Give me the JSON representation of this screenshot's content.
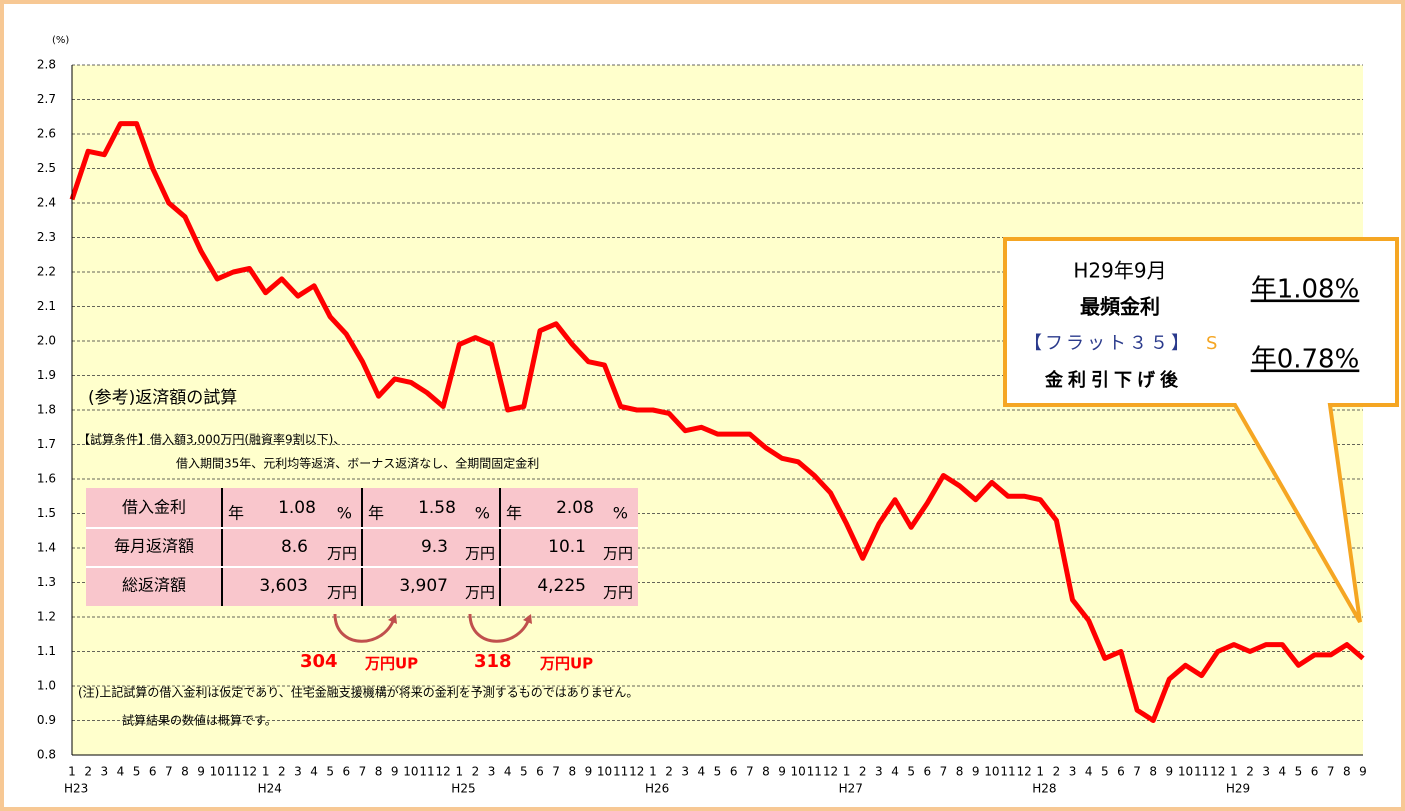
{
  "chart_data": {
    "type": "line",
    "y_unit": "(%)",
    "categories": [
      "1",
      "2",
      "3",
      "4",
      "5",
      "6",
      "7",
      "8",
      "9",
      "10",
      "11",
      "12",
      "1",
      "2",
      "3",
      "4",
      "5",
      "6",
      "7",
      "8",
      "9",
      "10",
      "11",
      "12",
      "1",
      "2",
      "3",
      "4",
      "5",
      "6",
      "7",
      "8",
      "9",
      "10",
      "11",
      "12",
      "1",
      "2",
      "3",
      "4",
      "5",
      "6",
      "7",
      "8",
      "9",
      "10",
      "11",
      "12",
      "1",
      "2",
      "3",
      "4",
      "5",
      "6",
      "7",
      "8",
      "9",
      "10",
      "11",
      "12",
      "1",
      "2",
      "3",
      "4",
      "5",
      "6",
      "7",
      "8",
      "9",
      "10",
      "11",
      "12",
      "1",
      "2",
      "3",
      "4",
      "5",
      "6",
      "7",
      "8",
      "9"
    ],
    "category_years": [
      "H23",
      null,
      null,
      null,
      null,
      null,
      null,
      null,
      null,
      null,
      null,
      null,
      "H24",
      null,
      null,
      null,
      null,
      null,
      null,
      null,
      null,
      null,
      null,
      null,
      "H25",
      null,
      null,
      null,
      null,
      null,
      null,
      null,
      null,
      null,
      null,
      null,
      "H26",
      null,
      null,
      null,
      null,
      null,
      null,
      null,
      null,
      null,
      null,
      null,
      "H27",
      null,
      null,
      null,
      null,
      null,
      null,
      null,
      null,
      null,
      null,
      null,
      "H28",
      null,
      null,
      null,
      null,
      null,
      null,
      null,
      null,
      null,
      null,
      null,
      "H29",
      null,
      null,
      null,
      null,
      null,
      null,
      null,
      null
    ],
    "values": [
      2.41,
      2.55,
      2.54,
      2.63,
      2.63,
      2.5,
      2.4,
      2.36,
      2.26,
      2.18,
      2.2,
      2.21,
      2.14,
      2.18,
      2.13,
      2.16,
      2.07,
      2.02,
      1.94,
      1.84,
      1.89,
      1.88,
      1.85,
      1.81,
      1.99,
      2.01,
      1.99,
      1.8,
      1.81,
      2.03,
      2.05,
      1.99,
      1.94,
      1.93,
      1.81,
      1.8,
      1.8,
      1.79,
      1.74,
      1.75,
      1.73,
      1.73,
      1.73,
      1.69,
      1.66,
      1.65,
      1.61,
      1.56,
      1.47,
      1.37,
      1.47,
      1.54,
      1.46,
      1.53,
      1.61,
      1.58,
      1.54,
      1.59,
      1.55,
      1.55,
      1.54,
      1.48,
      1.25,
      1.19,
      1.08,
      1.1,
      0.93,
      0.9,
      1.02,
      1.06,
      1.03,
      1.1,
      1.12,
      1.1,
      1.12,
      1.12,
      1.06,
      1.09,
      1.09,
      1.12,
      1.08
    ],
    "color": "#ff0000",
    "ylim": [
      0.8,
      2.8
    ],
    "yticks": [
      0.8,
      0.9,
      {
        "value": 1,
        "label": "1.0"
      },
      1.1,
      1.2,
      1.3,
      1.4,
      1.5,
      1.6,
      1.7,
      1.8,
      1.9,
      {
        "value": 2,
        "label": "2.0"
      },
      2.1,
      2.2,
      2.3,
      2.4,
      2.5,
      2.6,
      2.7,
      2.8
    ],
    "grid": true,
    "callout": {
      "date": "H29年9月",
      "kind": "最頻金利",
      "product": "【フラット３５】",
      "product_suffix": "S",
      "after": "金利引下げ後",
      "rate": "年1.08%",
      "rate_after": "年0.78%"
    },
    "reference": {
      "title": "(参考)返済額の試算",
      "conditions": [
        "【試算条件】借入額3,000万円(融資率9割以下)、",
        "借入期間35年、元利均等返済、ボーナス返済なし、全期間固定金利"
      ],
      "table": {
        "rows": [
          {
            "label": "借入金利",
            "cells": [
              [
                "年",
                "1.08",
                "%"
              ],
              [
                "年",
                "1.58",
                "%"
              ],
              [
                "年",
                "2.08",
                "%"
              ]
            ]
          },
          {
            "label": "毎月返済額",
            "cells": [
              [
                "8.6",
                "万円"
              ],
              [
                "9.3",
                "万円"
              ],
              [
                "10.1",
                "万円"
              ]
            ]
          },
          {
            "label": "総返済額",
            "cells": [
              [
                "3,603",
                "万円"
              ],
              [
                "3,907",
                "万円"
              ],
              [
                "4,225",
                "万円"
              ]
            ]
          }
        ]
      },
      "differences": [
        {
          "amount": "304",
          "unit": "万円UP"
        },
        {
          "amount": "318",
          "unit": "万円UP"
        }
      ],
      "notes": [
        "(注)上記試算の借入金利は仮定であり、住宅金融支援機構が将来の金利を予測するものではありません。",
        "試算結果の数値は概算です。"
      ]
    }
  }
}
